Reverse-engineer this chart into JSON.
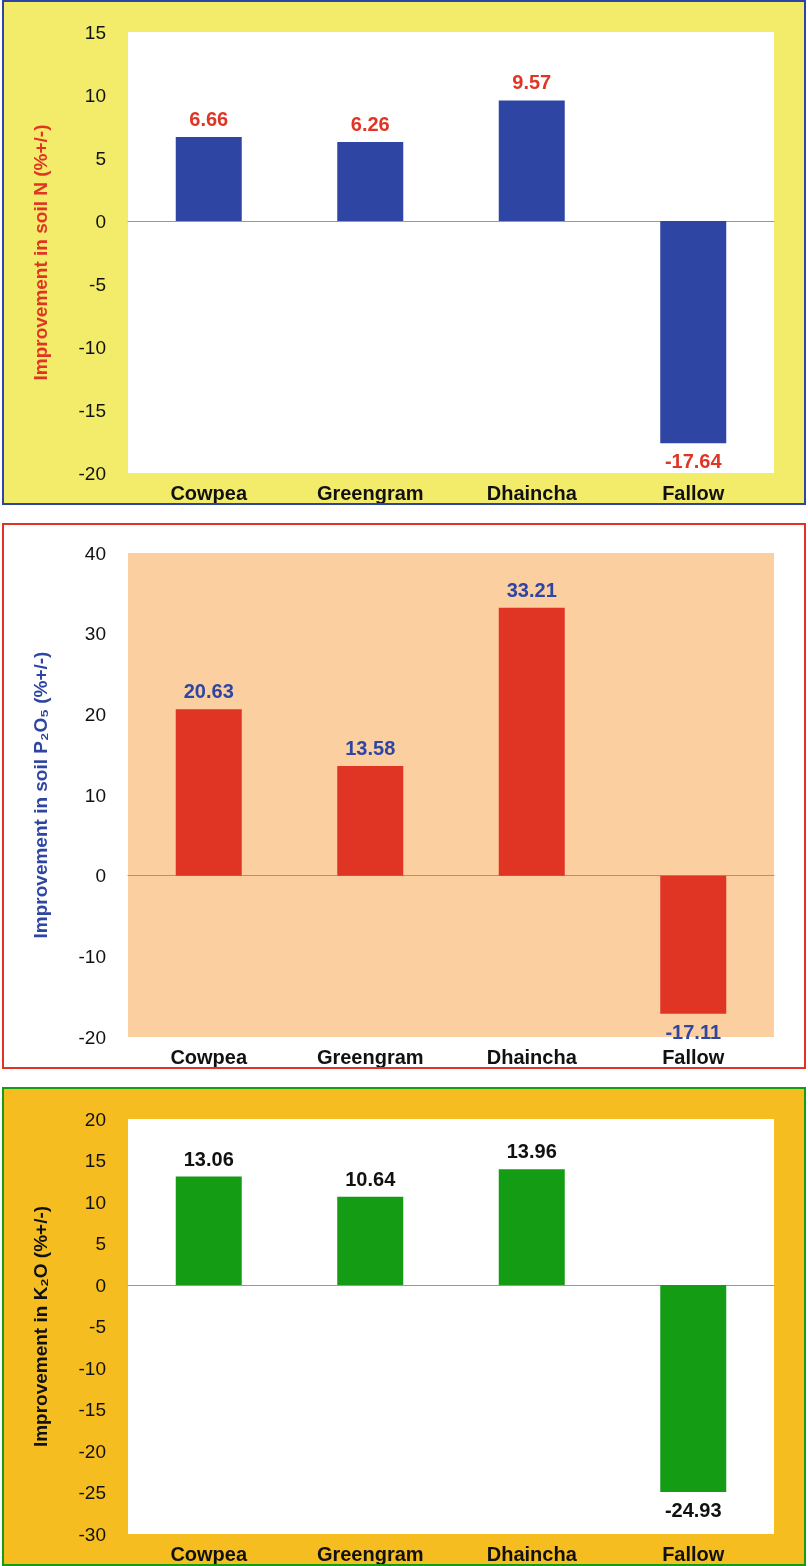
{
  "chart_data": [
    {
      "type": "bar",
      "ylabel": "Improvement in soil N (%+/-)",
      "categories": [
        "Cowpea",
        "Greengram",
        "Dhaincha",
        "Fallow"
      ],
      "values": [
        6.66,
        6.26,
        9.57,
        -17.64
      ],
      "color": "#2e45a3",
      "ylim": [
        -20,
        15
      ],
      "yticks": [
        -20,
        -15,
        -10,
        -5,
        0,
        5,
        10,
        15
      ],
      "data_labels": true
    },
    {
      "type": "bar",
      "ylabel": "Improvement in soil P₂O₅ (%+/-)",
      "categories": [
        "Cowpea",
        "Greengram",
        "Dhaincha",
        "Fallow"
      ],
      "values": [
        20.63,
        13.58,
        33.21,
        -17.11
      ],
      "color": "#e03525",
      "ylim": [
        -20,
        40
      ],
      "yticks": [
        -20,
        -10,
        0,
        10,
        20,
        30,
        40
      ],
      "data_labels": true
    },
    {
      "type": "bar",
      "ylabel": "Improvement in K₂O (%+/-)",
      "categories": [
        "Cowpea",
        "Greengram",
        "Dhaincha",
        "Fallow"
      ],
      "values": [
        13.06,
        10.64,
        13.96,
        -24.93
      ],
      "color": "#149c14",
      "ylim": [
        -30,
        20
      ],
      "yticks": [
        -30,
        -25,
        -20,
        -15,
        -10,
        -5,
        0,
        5,
        10,
        15,
        20
      ],
      "data_labels": true
    }
  ]
}
